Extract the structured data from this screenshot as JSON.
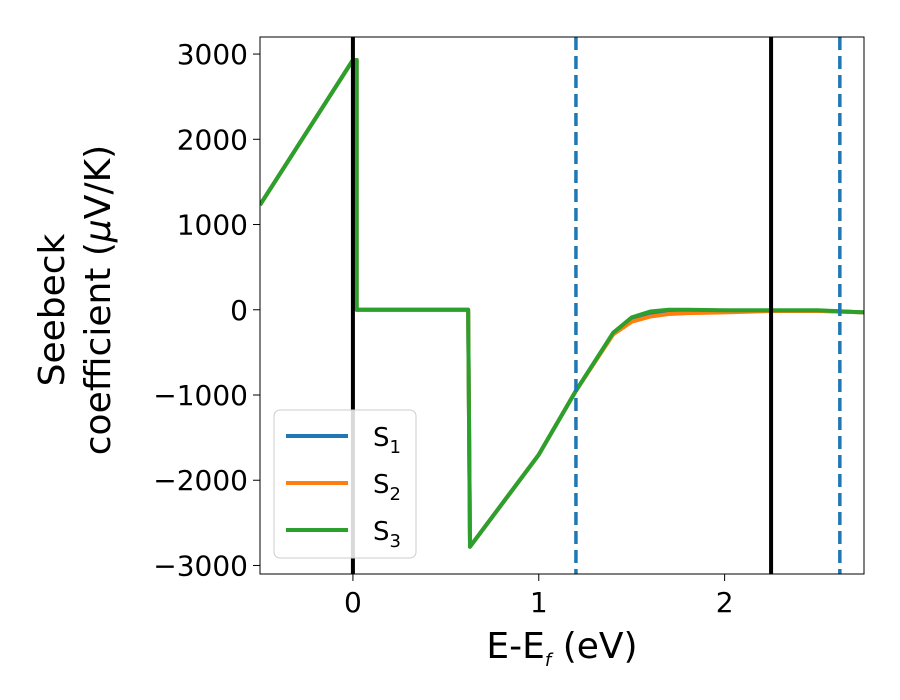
{
  "chart_data": {
    "type": "line",
    "title": "",
    "xlabel": {
      "main": "E-E",
      "sub": "f",
      "tail": " (eV)"
    },
    "ylabel": {
      "line1": "Seebeck",
      "line2a": "coefficient  (",
      "mu": "μ",
      "line2b": "V/K)"
    },
    "xlim": [
      -0.5,
      2.75
    ],
    "ylim": [
      -3100,
      3200
    ],
    "x_ticks": [
      0,
      1,
      2
    ],
    "x_tick_labels": [
      "0",
      "1",
      "2"
    ],
    "y_ticks": [
      3000,
      2000,
      1000,
      0,
      -1000,
      -2000,
      -3000
    ],
    "y_tick_labels": [
      "3000",
      "2000",
      "1000",
      "0",
      "−1000",
      "−2000",
      "−3000"
    ],
    "grid": false,
    "legend_position": "lower-left",
    "vertical_lines": [
      {
        "x": 0.0,
        "style": "solid",
        "color": "#000000"
      },
      {
        "x": 2.25,
        "style": "solid",
        "color": "#000000"
      },
      {
        "x": 1.2,
        "style": "dashed",
        "color": "#1f77b4"
      },
      {
        "x": 2.62,
        "style": "dashed",
        "color": "#1f77b4"
      }
    ],
    "series": [
      {
        "name": "S",
        "sub": "1",
        "color": "#1f77b4",
        "x": [
          -0.5,
          0.0,
          0.02,
          0.02,
          0.62,
          0.63,
          1.0,
          1.2,
          1.4,
          1.5,
          1.6,
          1.7,
          1.8,
          2.0,
          2.25,
          2.5,
          2.75
        ],
        "y": [
          1230,
          2930,
          2930,
          0,
          0,
          -2780,
          -1700,
          -950,
          -280,
          -120,
          -50,
          -20,
          -20,
          -20,
          -10,
          -10,
          -30
        ]
      },
      {
        "name": "S",
        "sub": "2",
        "color": "#ff7f0e",
        "x": [
          -0.5,
          0.0,
          0.02,
          0.02,
          0.62,
          0.63,
          1.0,
          1.2,
          1.4,
          1.5,
          1.6,
          1.7,
          1.8,
          2.0,
          2.25,
          2.5,
          2.75
        ],
        "y": [
          1230,
          2930,
          2930,
          0,
          0,
          -2780,
          -1700,
          -950,
          -290,
          -140,
          -80,
          -50,
          -40,
          -30,
          -15,
          -15,
          -30
        ]
      },
      {
        "name": "S",
        "sub": "3",
        "color": "#2ca02c",
        "x": [
          -0.5,
          0.0,
          0.02,
          0.02,
          0.62,
          0.63,
          1.0,
          1.2,
          1.4,
          1.5,
          1.6,
          1.7,
          1.8,
          2.0,
          2.25,
          2.5,
          2.75
        ],
        "y": [
          1230,
          2930,
          2930,
          0,
          0,
          -2780,
          -1700,
          -950,
          -270,
          -90,
          -20,
          0,
          0,
          -5,
          -5,
          -5,
          -30
        ]
      }
    ]
  }
}
